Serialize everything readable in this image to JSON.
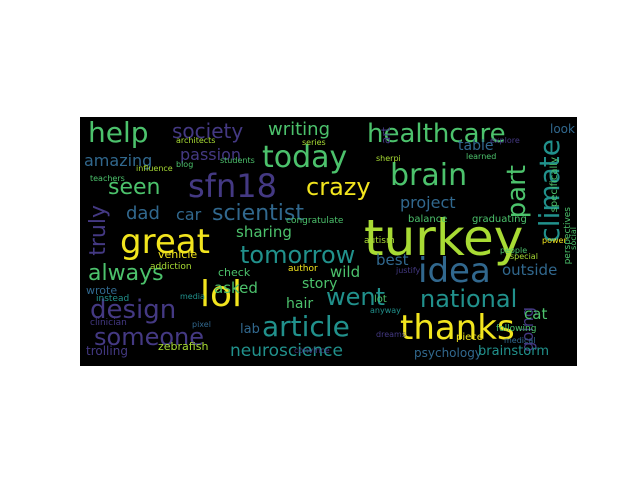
{
  "colors": {
    "background": "#000000",
    "yellow": "#f2e51e",
    "lime": "#a8db34",
    "green": "#4cc26c",
    "teal": "#21918c",
    "blue": "#31688e",
    "indigo": "#443983",
    "purple": "#440154"
  },
  "words": {
    "turkey": "turkey",
    "great": "great",
    "sfn18": "sfn18",
    "today": "today",
    "healthcare": "healthcare",
    "help": "help",
    "brain": "brain",
    "idea": "idea",
    "thanks": "thanks",
    "lol": "lol",
    "article": "article",
    "design": "design",
    "climate": "climate",
    "national": "national",
    "someone": "someone",
    "tomorrow": "tomorrow",
    "scientist": "scientist",
    "crazy": "crazy",
    "went": "went",
    "always": "always",
    "seen": "seen",
    "society": "society",
    "writing": "writing",
    "part": "part",
    "truly": "truly",
    "passion": "passion",
    "amazing": "amazing",
    "dad": "dad",
    "car": "car",
    "project": "project",
    "neuroscience": "neuroscience",
    "sharing": "sharing",
    "asked": "asked",
    "wild": "wild",
    "outside": "outside",
    "lab": "lab",
    "going": "going",
    "cat": "cat",
    "story": "story",
    "hair": "hair",
    "table": "table",
    "best": "best",
    "psychology": "psychology",
    "brainstorm": "brainstorm",
    "vehicle": "vehicle",
    "zebrafish": "zebrafish",
    "trolling": "trolling",
    "look": "look",
    "explore": "explore",
    "sherpi": "sherpi",
    "balance": "balance",
    "graduating": "graduating",
    "specifically": "specifically",
    "perspectives": "perspectives",
    "congratulate": "congratulate",
    "autism": "autism",
    "check": "check",
    "author": "author",
    "justify": "justify",
    "lot": "lot",
    "piece": "piece",
    "special": "special",
    "following": "following",
    "medical": "medical",
    "wrote": "wrote",
    "instead": "instead",
    "addiction": "addiction",
    "pixel": "pixel",
    "media": "media",
    "clinician": "clinician",
    "blog": "blog",
    "students": "students",
    "teachers": "teachers",
    "architects": "architects",
    "influence": "influence",
    "series": "series",
    "learned": "learned",
    "art": "art",
    "anyway": "anyway",
    "convince": "convince",
    "dreams": "dreams",
    "social": "social",
    "power": "power",
    "people": "people"
  }
}
